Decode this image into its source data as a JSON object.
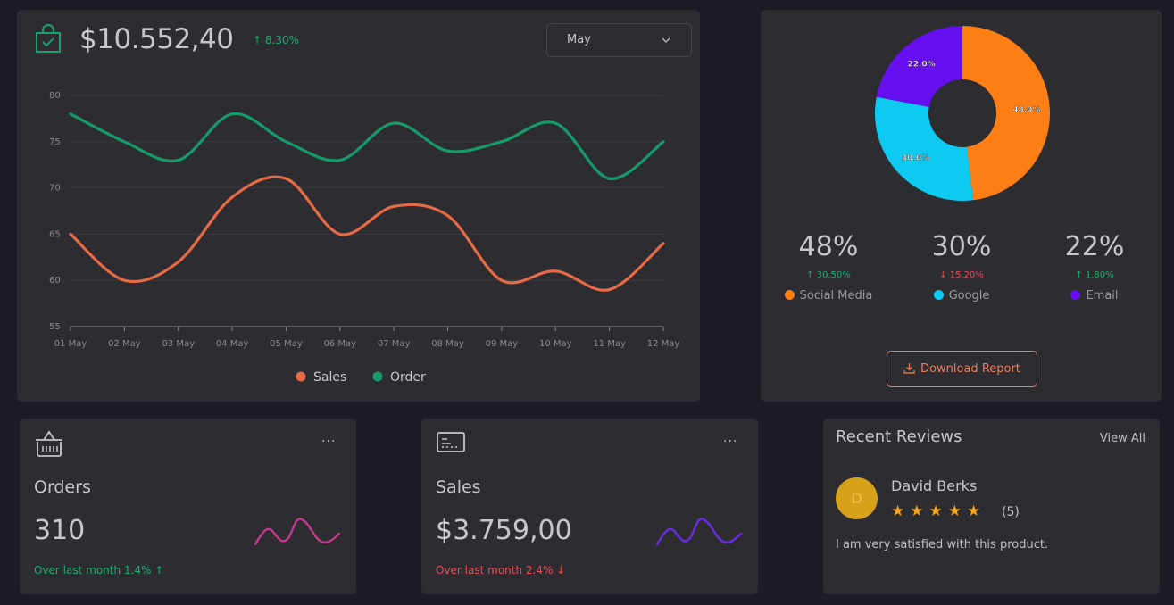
{
  "summary": {
    "total": "$10.552,40",
    "change": "↑ 8.30%",
    "month_select": "May"
  },
  "chart_data": [
    {
      "type": "line",
      "x": [
        "01 May",
        "02 May",
        "03 May",
        "04 May",
        "05 May",
        "06 May",
        "07 May",
        "08 May",
        "09 May",
        "10 May",
        "11 May",
        "12 May"
      ],
      "series": [
        {
          "name": "Sales",
          "values": [
            65,
            60,
            62,
            69,
            71,
            65,
            68,
            67,
            60,
            61,
            59,
            64
          ],
          "color": "#e66a45"
        },
        {
          "name": "Order",
          "values": [
            78,
            75,
            73,
            78,
            75,
            73,
            77,
            74,
            75,
            77,
            71,
            75
          ],
          "color": "#169a68"
        }
      ],
      "ylim": [
        55,
        80
      ],
      "yticks": [
        55,
        60,
        65,
        70,
        75,
        80
      ],
      "grid": true,
      "legend_position": "bottom"
    },
    {
      "type": "pie",
      "donut": true,
      "categories": [
        "Social Media",
        "Google",
        "Email"
      ],
      "values": [
        48.0,
        30.0,
        22.0
      ],
      "labels": [
        "48.0%",
        "30.0%",
        "22.0%"
      ],
      "colors": [
        "#fd7e14",
        "#0dcaf0",
        "#6610f2"
      ]
    }
  ],
  "channels": [
    {
      "percent": "48%",
      "change": "↑ 30.50%",
      "change_color": "#1fae6e",
      "label": "Social Media",
      "color": "#fd7e14"
    },
    {
      "percent": "30%",
      "change": "↓ 15.20%",
      "change_color": "#ef4d5a",
      "label": "Google",
      "color": "#0dcaf0"
    },
    {
      "percent": "22%",
      "change": "↑ 1.80%",
      "change_color": "#1fae6e",
      "label": "Email",
      "color": "#6610f2"
    }
  ],
  "download_label": "Download Report",
  "orders": {
    "title": "Orders",
    "value": "310",
    "note": "Over last month 1.4% ↑",
    "note_color": "#1fae6e",
    "spark_color": "#c33a8e",
    "more": "···"
  },
  "sales": {
    "title": "Sales",
    "value": "$3.759,00",
    "note": "Over last month 2.4% ↓",
    "note_color": "#ef4d5a",
    "spark_color": "#6a2de0",
    "more": "···"
  },
  "reviews": {
    "title": "Recent Reviews",
    "view_all": "View All",
    "avatar_initial": "D",
    "name": "David Berks",
    "stars": "★★★★★",
    "count": "(5)",
    "text": "I am very satisfied with this product."
  }
}
